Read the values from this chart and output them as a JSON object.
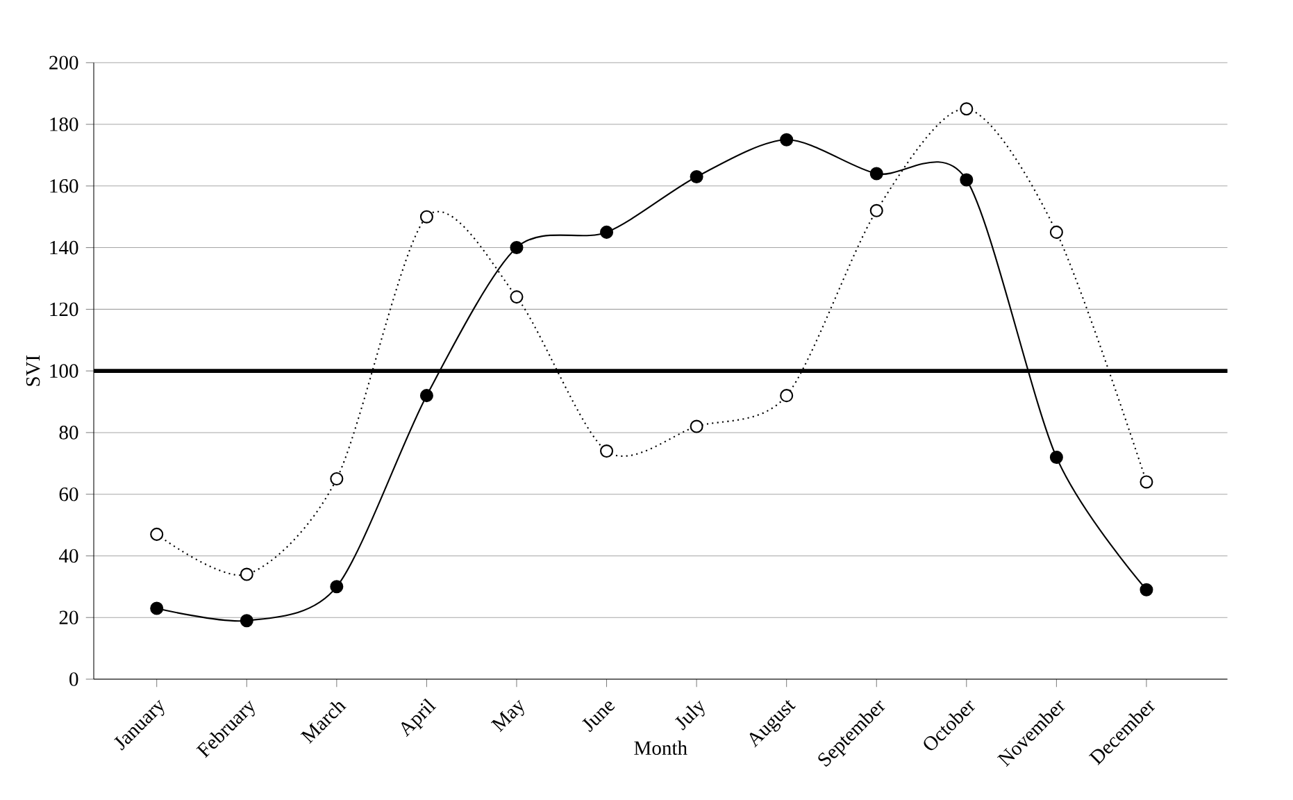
{
  "chart_data": {
    "type": "line",
    "xlabel": "Month",
    "ylabel": "SVI",
    "categories": [
      "January",
      "February",
      "March",
      "April",
      "May",
      "June",
      "July",
      "August",
      "September",
      "October",
      "November",
      "December"
    ],
    "series": [
      {
        "color": "#000000",
        "line_style": "solid",
        "values": [
          23,
          19,
          30,
          92,
          140,
          145,
          163,
          175,
          164,
          162,
          72,
          29
        ]
      },
      {
        "color": "#000000",
        "line_style": "dotted",
        "values": [
          47,
          34,
          65,
          150,
          124,
          74,
          82,
          92,
          152,
          185,
          145,
          64
        ]
      }
    ],
    "ylim": [
      0,
      200
    ],
    "yticks": [
      0,
      20,
      40,
      60,
      80,
      100,
      120,
      140,
      160,
      180,
      200
    ],
    "grid": "y",
    "marker": "circle",
    "ref_lines": [
      {
        "axis": "y",
        "value": 100,
        "color": "#000000"
      }
    ]
  }
}
